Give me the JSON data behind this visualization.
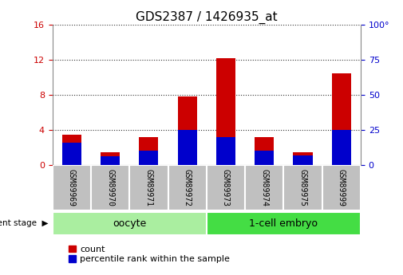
{
  "title": "GDS2387 / 1426935_at",
  "samples": [
    "GSM89969",
    "GSM89970",
    "GSM89971",
    "GSM89972",
    "GSM89973",
    "GSM89974",
    "GSM89975",
    "GSM89999"
  ],
  "count_values": [
    3.5,
    1.5,
    3.2,
    7.8,
    12.2,
    3.2,
    1.5,
    10.5
  ],
  "percentile_values": [
    16,
    6,
    10,
    25,
    20,
    10,
    7,
    25
  ],
  "groups": [
    {
      "label": "oocyte",
      "start": 0,
      "end": 4,
      "color": "#aaeea0"
    },
    {
      "label": "1-cell embryo",
      "start": 4,
      "end": 8,
      "color": "#44dd44"
    }
  ],
  "left_ylim": [
    0,
    16
  ],
  "right_ylim": [
    0,
    100
  ],
  "left_yticks": [
    0,
    4,
    8,
    12,
    16
  ],
  "right_yticks": [
    0,
    25,
    50,
    75,
    100
  ],
  "right_yticklabels": [
    "0",
    "25",
    "50",
    "75",
    "100°"
  ],
  "left_tick_color": "#cc0000",
  "right_tick_color": "#0000cc",
  "bar_width": 0.5,
  "count_color": "#cc0000",
  "percentile_color": "#0000cc",
  "dotted_line_color": "#333333",
  "bg_color": "#ffffff",
  "xlabel_area_bg": "#c0c0c0",
  "group_label_fontsize": 9,
  "tick_label_fontsize": 8,
  "title_fontsize": 11,
  "legend_count_label": "count",
  "legend_percentile_label": "percentile rank within the sample",
  "dev_stage_label": "development stage"
}
